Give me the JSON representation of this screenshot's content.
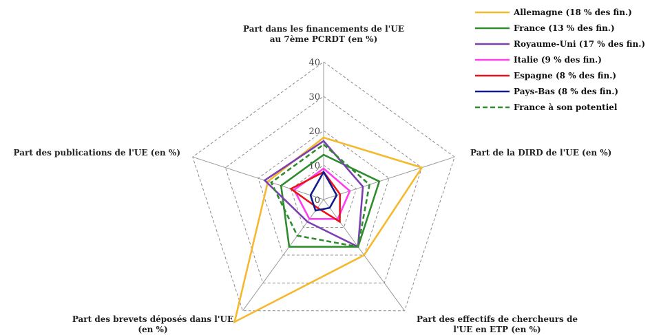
{
  "chart_data": {
    "type": "radar",
    "axes": [
      "Part dans les financements de l'UE au 7ème PCRDT (en %)",
      "Part de la DIRD de l'UE (en %)",
      "Part des effectifs de chercheurs de l'UE en ETP (en %)",
      "Part des brevets déposés dans l'UE (en %)",
      "Part des publications de l'UE (en %)"
    ],
    "axis_label_lines": [
      [
        "Part dans les financements de l'UE",
        "au 7ème PCRDT (en %)"
      ],
      [
        "Part de la DIRD de l'UE (en %)"
      ],
      [
        "Part des effectifs de chercheurs de",
        "l'UE en ETP (en %)"
      ],
      [
        "Part des brevets déposés dans l'UE",
        "(en %)"
      ],
      [
        "Part des publications de l'UE (en %)"
      ]
    ],
    "ticks": [
      0,
      10,
      20,
      30,
      40
    ],
    "rlim": [
      0,
      40
    ],
    "grid": true,
    "legend_position": "top-right",
    "series": [
      {
        "name": "Allemagne (18 % des fin.)",
        "color": "#f5b82e",
        "dash": false,
        "values": [
          18,
          30,
          20,
          44,
          17
        ]
      },
      {
        "name": "France (13 % des fin.)",
        "color": "#2e8b2e",
        "dash": false,
        "values": [
          13,
          17,
          17,
          17,
          13
        ]
      },
      {
        "name": "Royaume-Uni (17 % des fin.)",
        "color": "#7b3fb0",
        "dash": false,
        "values": [
          17,
          12,
          17,
          8,
          18
        ]
      },
      {
        "name": "Italie (9 % des fin.)",
        "color": "#ff3df0",
        "dash": false,
        "values": [
          9,
          8,
          7,
          7,
          9
        ]
      },
      {
        "name": "Espagne (8 % des fin.)",
        "color": "#e8141c",
        "dash": false,
        "values": [
          8,
          5,
          8,
          3,
          10
        ]
      },
      {
        "name": "Pays-Bas (8 % des fin.)",
        "color": "#141c8c",
        "dash": false,
        "values": [
          8,
          4,
          3,
          4,
          4
        ]
      },
      {
        "name": "France à son potentiel",
        "color": "#2e8b2e",
        "dash": true,
        "values": [
          16,
          14,
          17,
          13,
          16
        ]
      }
    ]
  }
}
